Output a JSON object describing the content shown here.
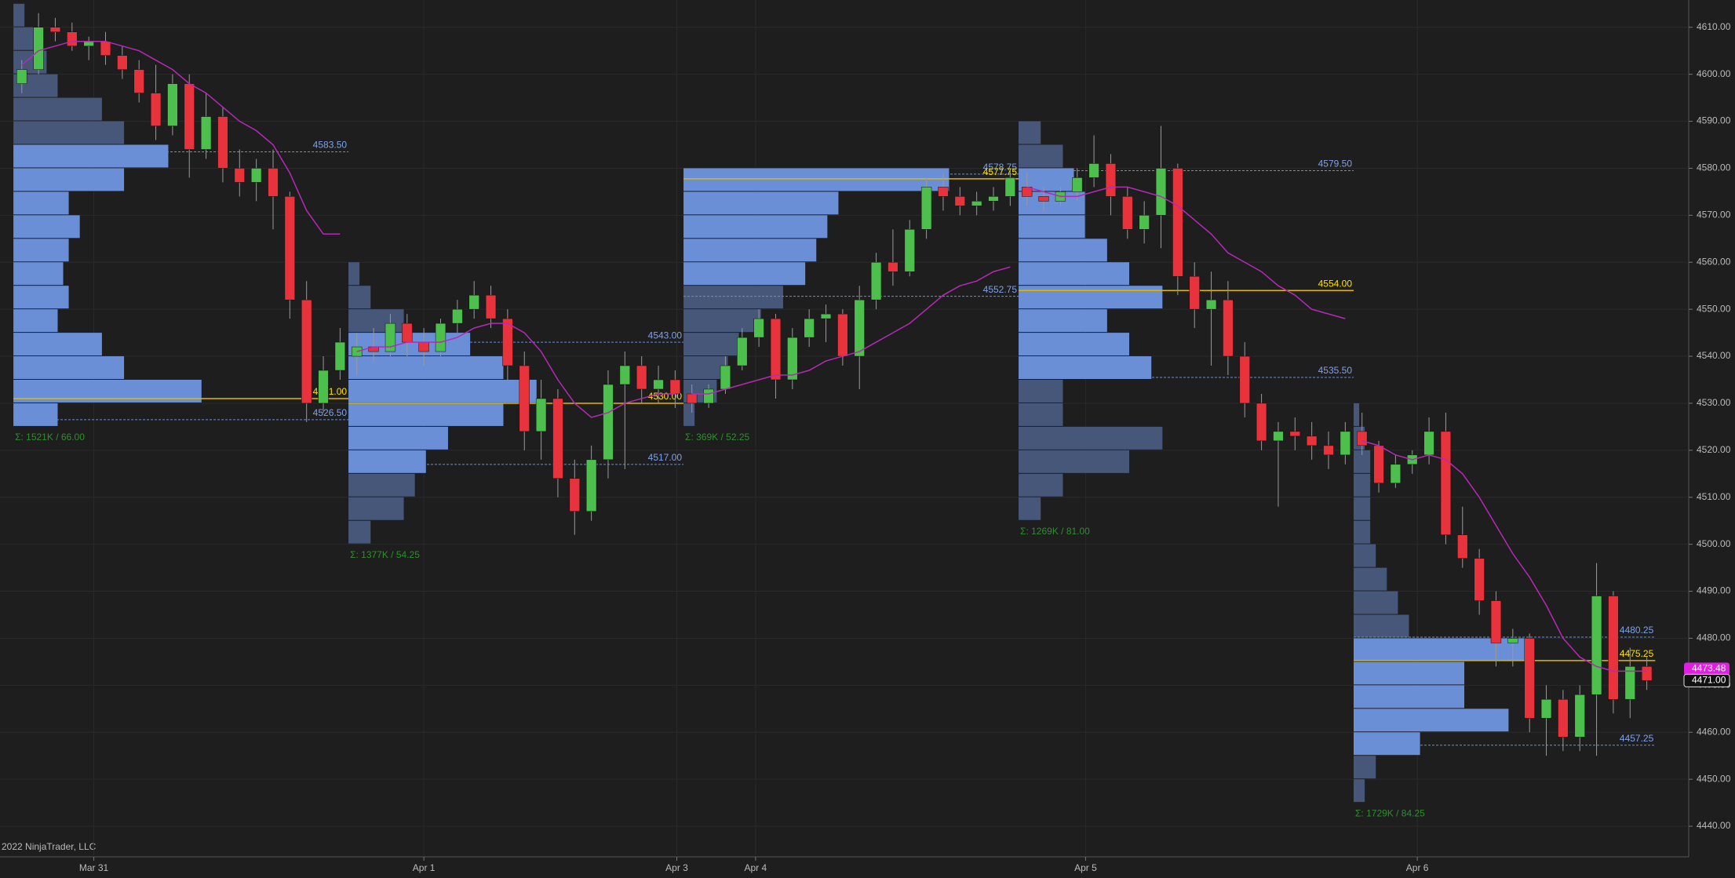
{
  "chart_data": {
    "type": "candlestick",
    "copyright": "2022 NinjaTrader, LLC",
    "xlim": [
      -1.3,
      99.5
    ],
    "ylim": [
      4433.5,
      4615.8
    ],
    "xticks": [
      {
        "value": 4.3,
        "label": "Mar 31"
      },
      {
        "value": 24.0,
        "label": "Apr 1"
      },
      {
        "value": 39.1,
        "label": "Apr 3"
      },
      {
        "value": 43.8,
        "label": "Apr 4"
      },
      {
        "value": 63.5,
        "label": "Apr 5"
      },
      {
        "value": 83.3,
        "label": "Apr 6"
      }
    ],
    "yticks": [
      {
        "value": 4440,
        "label": "4440.00"
      },
      {
        "value": 4450,
        "label": "4450.00"
      },
      {
        "value": 4460,
        "label": "4460.00"
      },
      {
        "value": 4470,
        "label": "4470.00"
      },
      {
        "value": 4480,
        "label": "4480.00"
      },
      {
        "value": 4490,
        "label": "4490.00"
      },
      {
        "value": 4500,
        "label": "4500.00"
      },
      {
        "value": 4510,
        "label": "4510.00"
      },
      {
        "value": 4520,
        "label": "4520.00"
      },
      {
        "value": 4530,
        "label": "4530.00"
      },
      {
        "value": 4540,
        "label": "4540.00"
      },
      {
        "value": 4550,
        "label": "4550.00"
      },
      {
        "value": 4560,
        "label": "4560.00"
      },
      {
        "value": 4570,
        "label": "4570.00"
      },
      {
        "value": 4580,
        "label": "4580.00"
      },
      {
        "value": 4590,
        "label": "4590.00"
      },
      {
        "value": 4600,
        "label": "4600.00"
      },
      {
        "value": 4610,
        "label": "4610.00"
      }
    ],
    "up_color": "#4cbf4c",
    "down_color": "#e8333c",
    "open": [
      4598,
      4601,
      4610,
      4609,
      4606,
      4607,
      4604,
      4601,
      4596,
      4589,
      4598,
      4584,
      4591,
      4580,
      4577,
      4580,
      4574,
      4552,
      4530,
      4537,
      4540,
      4542,
      4541,
      4547,
      4543,
      4541,
      4547,
      4550,
      4553,
      4548,
      4538,
      4524,
      4531,
      4514,
      4507,
      4518,
      4534,
      4538,
      4533,
      4535,
      4532,
      4530,
      4533,
      4538,
      4544,
      4548,
      4535,
      4544,
      4548,
      4549,
      4540,
      4552,
      4560,
      4558,
      4567,
      4576,
      4574,
      4572,
      4573,
      4574,
      4576,
      4574,
      4573,
      4575,
      4578,
      4581,
      4574,
      4567,
      4570,
      4580,
      4557,
      4550,
      4552,
      4540,
      4530,
      4522,
      4524,
      4523,
      4521,
      4519,
      4524,
      4521,
      4513,
      4517,
      4519,
      4524,
      4502,
      4497,
      4488,
      4479,
      4480,
      4463,
      4467,
      4459,
      4468,
      4489,
      4467,
      4474
    ],
    "high": [
      4603,
      4613,
      4612,
      4611,
      4608,
      4609,
      4606,
      4603,
      4602,
      4600,
      4600,
      4596,
      4593,
      4584,
      4582,
      4584,
      4575,
      4556,
      4540,
      4546,
      4545,
      4546,
      4549,
      4549,
      4546,
      4548,
      4552,
      4556,
      4555,
      4550,
      4541,
      4535,
      4533,
      4518,
      4521,
      4537,
      4541,
      4540,
      4538,
      4537,
      4534,
      4534,
      4540,
      4546,
      4550,
      4549,
      4546,
      4550,
      4551,
      4550,
      4555,
      4562,
      4567,
      4569,
      4578,
      4579,
      4576,
      4575,
      4576,
      4580,
      4579,
      4576,
      4576,
      4580,
      4587,
      4583,
      4576,
      4573,
      4589,
      4581,
      4560,
      4558,
      4556,
      4543,
      4532,
      4526,
      4527,
      4526,
      4524,
      4526,
      4528,
      4522,
      4519,
      4520,
      4527,
      4528,
      4508,
      4499,
      4490,
      4482,
      4481,
      4470,
      4469,
      4470,
      4496,
      4490,
      4478,
      4476
    ],
    "low": [
      4596,
      4600,
      4607,
      4605,
      4603,
      4602,
      4599,
      4594,
      4586,
      4587,
      4578,
      4582,
      4577,
      4574,
      4573,
      4567,
      4548,
      4526,
      4528,
      4535,
      4536,
      4539,
      4540,
      4540,
      4538,
      4540,
      4545,
      4548,
      4546,
      4535,
      4520,
      4518,
      4510,
      4502,
      4505,
      4514,
      4516,
      4530,
      4530,
      4529,
      4528,
      4529,
      4532,
      4537,
      4542,
      4531,
      4533,
      4542,
      4543,
      4538,
      4533,
      4550,
      4555,
      4557,
      4565,
      4571,
      4570,
      4570,
      4571,
      4572,
      4572,
      4571,
      4572,
      4573,
      4576,
      4570,
      4565,
      4564,
      4563,
      4553,
      4546,
      4538,
      4536,
      4527,
      4520,
      4508,
      4520,
      4518,
      4516,
      4517,
      4519,
      4511,
      4512,
      4515,
      4517,
      4500,
      4495,
      4485,
      4474,
      4474,
      4460,
      4455,
      4456,
      4456,
      4455,
      4464,
      4463,
      4469
    ],
    "close": [
      4601,
      4610,
      4609,
      4606,
      4607,
      4604,
      4601,
      4596,
      4589,
      4598,
      4584,
      4591,
      4580,
      4577,
      4580,
      4574,
      4552,
      4530,
      4537,
      4543,
      4542,
      4541,
      4547,
      4543,
      4541,
      4547,
      4550,
      4553,
      4548,
      4538,
      4524,
      4531,
      4514,
      4507,
      4518,
      4534,
      4538,
      4533,
      4535,
      4532,
      4530,
      4533,
      4538,
      4544,
      4548,
      4535,
      4544,
      4548,
      4549,
      4540,
      4552,
      4560,
      4558,
      4567,
      4576,
      4574,
      4572,
      4573,
      4574,
      4578,
      4574,
      4573,
      4575,
      4578,
      4581,
      4574,
      4567,
      4570,
      4580,
      4557,
      4550,
      4552,
      4540,
      4530,
      4522,
      4524,
      4523,
      4521,
      4519,
      4524,
      4521,
      4513,
      4517,
      4519,
      4524,
      4502,
      4497,
      4488,
      4479,
      4480,
      4463,
      4467,
      4459,
      4468,
      4489,
      4467,
      4474,
      4471
    ],
    "ma": {
      "color": "#b52ab5",
      "values": [
        4602,
        4605,
        4606,
        4607,
        4607,
        4607,
        4606,
        4605,
        4603,
        4601,
        4598,
        4596,
        4593,
        4590,
        4588,
        4585,
        4579,
        4571,
        4566,
        4566,
        4541,
        4542,
        4542,
        4543,
        4543,
        4543,
        4544,
        4546,
        4547,
        4547,
        4545,
        4541,
        4535,
        4530,
        4527,
        4528,
        4530,
        4531,
        4532,
        4532,
        4532,
        4532,
        4533,
        4534,
        4535,
        4536,
        4536,
        4537,
        4539,
        4540,
        4541,
        4543,
        4545,
        4547,
        4550,
        4553,
        4555,
        4556,
        4558,
        4559,
        4576,
        4575,
        4574,
        4574,
        4575,
        4576,
        4576,
        4575,
        4574,
        4572,
        4569,
        4566,
        4562,
        4560,
        4558,
        4555,
        4553,
        4550,
        4549,
        4548,
        4522,
        4521,
        4519,
        4518,
        4519,
        4518,
        4515,
        4510,
        4504,
        4498,
        4493,
        4487,
        4480,
        4476,
        4474,
        4473,
        4473,
        4473
      ]
    },
    "profiles": [
      {
        "x_range": [
          -0.5,
          19.5
        ],
        "prices": [
          4525,
          4530,
          4535,
          4540,
          4545,
          4550,
          4555,
          4560,
          4565,
          4570,
          4575,
          4580,
          4585,
          4590,
          4595,
          4600,
          4605,
          4610
        ],
        "volumes": [
          40,
          170,
          100,
          80,
          40,
          50,
          45,
          50,
          60,
          50,
          100,
          140,
          100,
          80,
          40,
          30,
          20,
          10
        ],
        "poc": {
          "value": 4531,
          "label": "4531.00"
        },
        "vah": {
          "value": 4583.5,
          "label": "4583.50"
        },
        "val": {
          "value": 4526.5,
          "label": "4526.50"
        },
        "summary": "Σ: 1521K / 66.00"
      },
      {
        "x_range": [
          19.5,
          39.5
        ],
        "prices": [
          4500,
          4505,
          4510,
          4515,
          4520,
          4525,
          4530,
          4535,
          4540,
          4545,
          4550,
          4555
        ],
        "volumes": [
          20,
          50,
          60,
          70,
          90,
          140,
          170,
          140,
          110,
          50,
          20,
          10
        ],
        "poc": {
          "value": 4530,
          "label": "4530.00"
        },
        "vah": {
          "value": 4543,
          "label": "4543.00"
        },
        "val": {
          "value": 4517,
          "label": "4517.00"
        },
        "summary": "Σ: 1377K / 54.25"
      },
      {
        "x_range": [
          39.5,
          59.5
        ],
        "prices": [
          4525,
          4530,
          4535,
          4540,
          4545,
          4550,
          4555,
          4560,
          4565,
          4570,
          4575
        ],
        "volumes": [
          10,
          30,
          40,
          50,
          70,
          90,
          110,
          120,
          130,
          140,
          240
        ],
        "poc": {
          "value": 4577.75,
          "label": "4577.75"
        },
        "vah": {
          "value": 4578.75,
          "label": "4578.75"
        },
        "val": {
          "value": 4552.75,
          "label": "4552.75"
        },
        "summary": "Σ: 369K / 52.25"
      },
      {
        "x_range": [
          59.5,
          79.5
        ],
        "prices": [
          4505,
          4510,
          4515,
          4520,
          4525,
          4530,
          4535,
          4540,
          4545,
          4550,
          4555,
          4560,
          4565,
          4570,
          4575,
          4580,
          4585
        ],
        "volumes": [
          20,
          40,
          100,
          130,
          40,
          40,
          120,
          100,
          80,
          130,
          100,
          80,
          60,
          60,
          50,
          40,
          20
        ],
        "poc": {
          "value": 4554,
          "label": "4554.00"
        },
        "vah": {
          "value": 4579.5,
          "label": "4579.50"
        },
        "val": {
          "value": 4535.5,
          "label": "4535.50"
        },
        "summary": "Σ: 1269K / 81.00"
      },
      {
        "x_range": [
          79.5,
          97.5
        ],
        "prices": [
          4445,
          4450,
          4455,
          4460,
          4465,
          4470,
          4475,
          4480,
          4485,
          4490,
          4495,
          4500,
          4505,
          4510,
          4515,
          4520,
          4525
        ],
        "volumes": [
          10,
          20,
          60,
          140,
          100,
          100,
          160,
          50,
          40,
          30,
          20,
          15,
          15,
          15,
          15,
          10,
          5
        ],
        "poc": {
          "value": 4475.25,
          "label": "4475.25"
        },
        "vah": {
          "value": 4480.25,
          "label": "4480.25"
        },
        "val": {
          "value": 4457.25,
          "label": "4457.25"
        },
        "summary": "Σ: 1729K / 84.25"
      }
    ],
    "marker": {
      "value": 4473.48,
      "label": "4473.48",
      "color": "#e020e0"
    },
    "last_price": {
      "value": 4471,
      "label": "4471.00"
    }
  }
}
